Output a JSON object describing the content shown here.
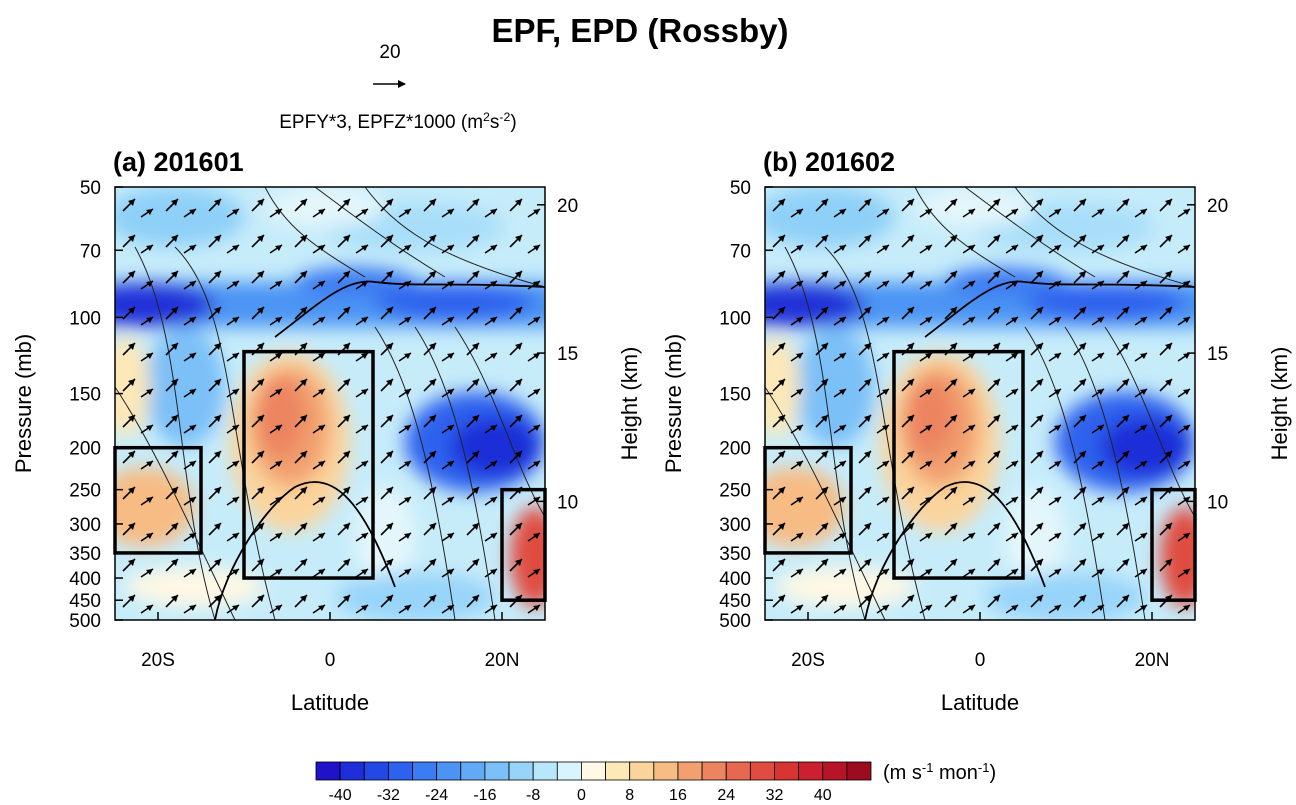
{
  "figure": {
    "title": "EPF, EPD (Rossby)",
    "reference_vector": {
      "value": 20,
      "label_parts": [
        "EPFY*3, EPFZ*1000 (m",
        "2",
        "s",
        "-2",
        ")"
      ]
    },
    "colorbar": {
      "clim": [
        -44,
        48
      ],
      "ticks": [
        -40,
        -32,
        -24,
        -16,
        -8,
        0,
        8,
        16,
        24,
        32,
        40
      ],
      "colors": [
        "#2012c8",
        "#1e2ed8",
        "#2448e6",
        "#2e62ee",
        "#3c7cf2",
        "#4c94f4",
        "#62aaf6",
        "#7cc0f8",
        "#98d4fa",
        "#b8e6fb",
        "#d8f4fc",
        "#fff8e4",
        "#fde8b8",
        "#fbd49c",
        "#f7bc84",
        "#f2a070",
        "#ec8460",
        "#e66850",
        "#e04c40",
        "#d83434",
        "#cc2030",
        "#b81428",
        "#9c0c20"
      ],
      "unit_parts": [
        "(m s",
        "-1",
        " mon",
        "-1",
        ")"
      ]
    }
  },
  "chart_data": [
    {
      "type": "contour",
      "title": "(a) 201601",
      "xlabel": "Latitude",
      "ylabel": "Pressure (mb)",
      "y2label": "Height (km)",
      "xlim": [
        -25,
        25
      ],
      "xticks": [
        {
          "value": -20,
          "label": "20S"
        },
        0,
        {
          "value": 20,
          "label": "20N"
        }
      ],
      "ylim": [
        500,
        50
      ],
      "log_y": true,
      "yticks": [
        50,
        70,
        100,
        150,
        200,
        250,
        300,
        350,
        400,
        450,
        500
      ],
      "y2lim": [
        6,
        20.6
      ],
      "y2ticks": [
        10,
        15,
        20
      ],
      "boxes": [
        {
          "lat": [
            -25,
            -15
          ],
          "p": [
            200,
            350
          ]
        },
        {
          "lat": [
            -10,
            5
          ],
          "p": [
            120,
            400
          ]
        },
        {
          "lat": [
            20,
            25
          ],
          "p": [
            250,
            450
          ]
        }
      ]
    },
    {
      "type": "contour",
      "title": "(b) 201602",
      "xlabel": "Latitude",
      "ylabel": "Pressure (mb)",
      "y2label": "Height (km)",
      "xlim": [
        -25,
        25
      ],
      "xticks": [
        {
          "value": -20,
          "label": "20S"
        },
        0,
        {
          "value": 20,
          "label": "20N"
        }
      ],
      "ylim": [
        500,
        50
      ],
      "log_y": true,
      "yticks": [
        50,
        70,
        100,
        150,
        200,
        250,
        300,
        350,
        400,
        450,
        500
      ],
      "y2lim": [
        6,
        20.6
      ],
      "y2ticks": [
        10,
        15,
        20
      ],
      "boxes": [
        {
          "lat": [
            -25,
            -15
          ],
          "p": [
            200,
            350
          ]
        },
        {
          "lat": [
            -10,
            5
          ],
          "p": [
            120,
            400
          ]
        },
        {
          "lat": [
            20,
            25
          ],
          "p": [
            250,
            450
          ]
        }
      ]
    }
  ]
}
